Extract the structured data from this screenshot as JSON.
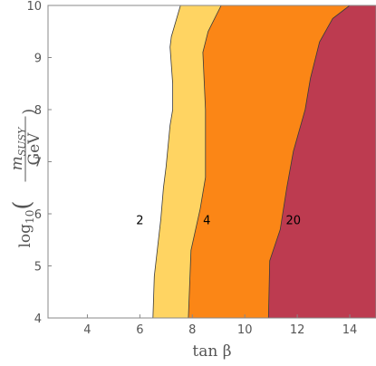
{
  "chart_data": {
    "type": "area",
    "title": "",
    "xlabel": "tan β",
    "ylabel_parts": {
      "prefix": "log",
      "sub": "10",
      "numerator": "m",
      "numerator_sub": "SUSY",
      "denominator": "GeV"
    },
    "xlim": [
      2.5,
      15
    ],
    "ylim": [
      4,
      10
    ],
    "x_ticks": [
      4,
      6,
      8,
      10,
      12,
      14
    ],
    "y_ticks": [
      4,
      5,
      6,
      7,
      8,
      9,
      10
    ],
    "grid": false,
    "series": [
      {
        "name": "2",
        "color": "#ffd462",
        "boundary": [
          [
            6.5,
            4
          ],
          [
            6.55,
            4.8
          ],
          [
            6.8,
            5.9
          ],
          [
            6.9,
            6.5
          ],
          [
            7.0,
            6.9
          ],
          [
            7.15,
            7.7
          ],
          [
            7.25,
            8.0
          ],
          [
            7.25,
            8.5
          ],
          [
            7.15,
            9.2
          ],
          [
            7.2,
            9.4
          ],
          [
            7.55,
            10
          ]
        ]
      },
      {
        "name": "4",
        "color": "#fb8616",
        "boundary": [
          [
            7.85,
            4
          ],
          [
            7.95,
            5.3
          ],
          [
            8.3,
            6.1
          ],
          [
            8.5,
            6.7
          ],
          [
            8.5,
            8.0
          ],
          [
            8.4,
            9.1
          ],
          [
            8.6,
            9.5
          ],
          [
            9.1,
            10
          ]
        ]
      },
      {
        "name": "20",
        "color": "#bd3b50",
        "boundary": [
          [
            10.9,
            4
          ],
          [
            10.95,
            5.1
          ],
          [
            11.35,
            5.7
          ],
          [
            11.6,
            6.5
          ],
          [
            11.85,
            7.2
          ],
          [
            12.3,
            8.0
          ],
          [
            12.5,
            8.6
          ],
          [
            12.85,
            9.3
          ],
          [
            13.35,
            9.75
          ],
          [
            14.0,
            10
          ]
        ]
      }
    ],
    "labels": [
      {
        "text": "2",
        "x": 6.0,
        "y": 5.8
      },
      {
        "text": "4",
        "x": 8.55,
        "y": 5.8
      },
      {
        "text": "20",
        "x": 11.85,
        "y": 5.8
      }
    ]
  }
}
